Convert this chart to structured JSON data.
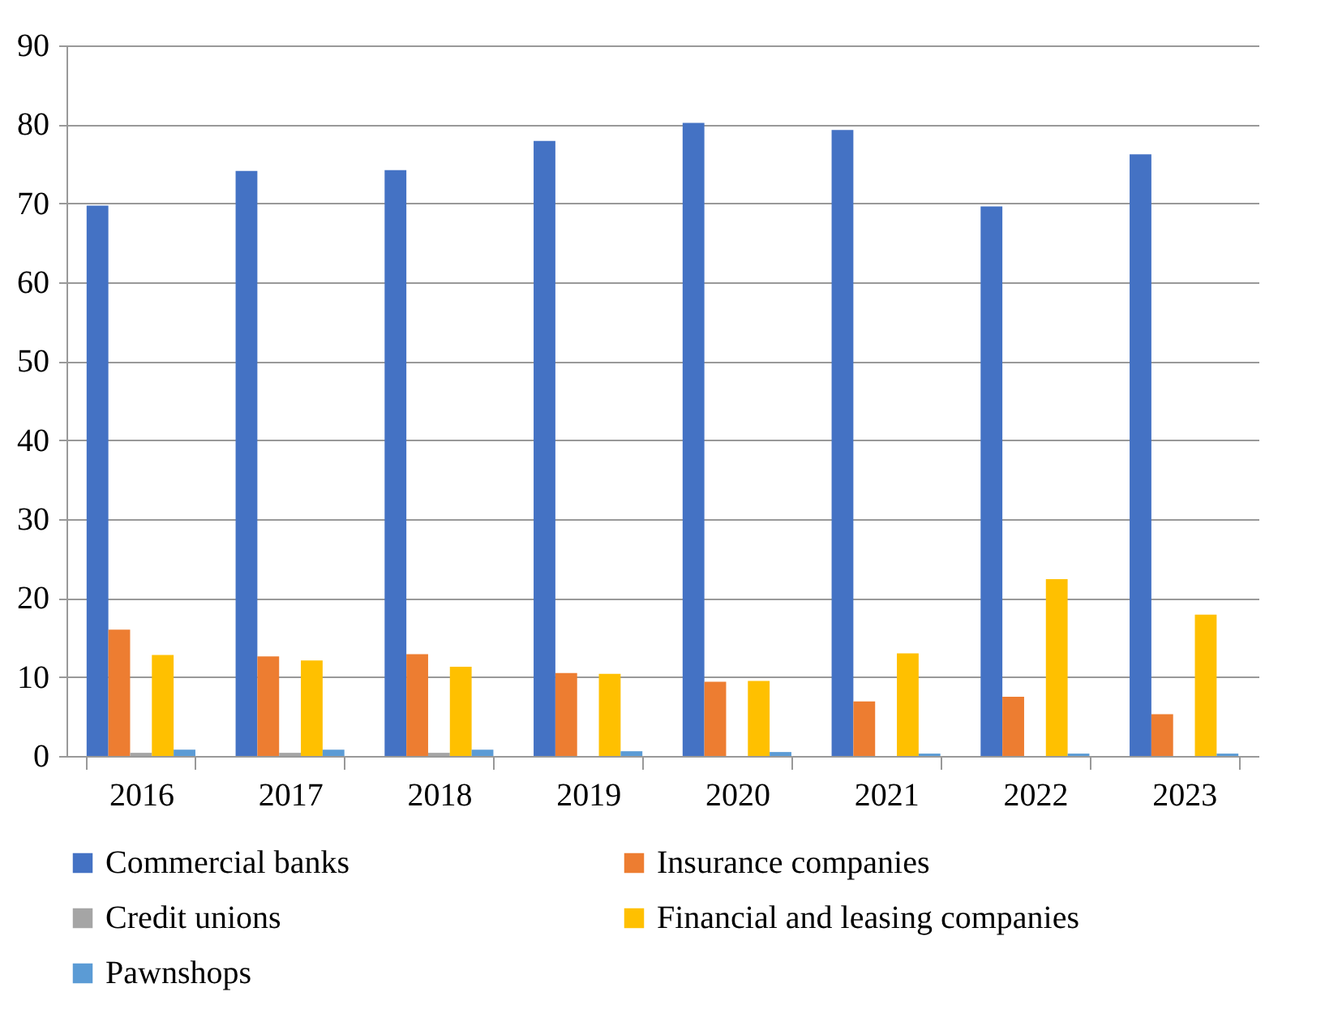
{
  "chart_data": {
    "type": "bar",
    "categories": [
      "2016",
      "2017",
      "2018",
      "2019",
      "2020",
      "2021",
      "2022",
      "2023"
    ],
    "series": [
      {
        "name": "Commercial banks",
        "color": "#4472c4",
        "values": [
          69.7,
          74.1,
          74.2,
          77.9,
          80.2,
          79.3,
          69.6,
          76.2
        ]
      },
      {
        "name": "Insurance companies",
        "color": "#ed7d31",
        "values": [
          16.0,
          12.6,
          12.9,
          10.5,
          9.4,
          6.9,
          7.5,
          5.3
        ]
      },
      {
        "name": "Credit unions",
        "color": "#a5a5a5",
        "values": [
          0.4,
          0.4,
          0.4,
          null,
          null,
          null,
          null,
          null
        ]
      },
      {
        "name": "Financial and leasing companies",
        "color": "#ffc000",
        "values": [
          12.8,
          12.1,
          11.3,
          10.4,
          9.5,
          13.0,
          22.4,
          17.9
        ]
      },
      {
        "name": "Pawnshops",
        "color": "#5b9bd5",
        "values": [
          0.8,
          0.8,
          0.8,
          0.6,
          0.5,
          0.3,
          0.3,
          0.3
        ]
      }
    ],
    "ylim": [
      0,
      90
    ],
    "yticks": [
      0,
      10,
      20,
      30,
      40,
      50,
      60,
      70,
      80,
      90
    ],
    "grid": "y",
    "legend": "bottom"
  }
}
